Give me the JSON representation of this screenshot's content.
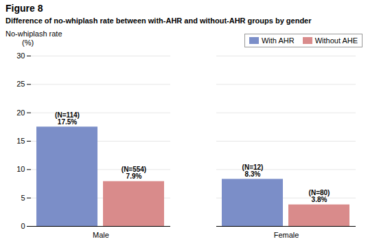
{
  "chart_data": {
    "type": "bar",
    "title": "Figure 8",
    "subtitle": "Difference of no-whiplash rate between with-AHR and without-AHR groups by gender",
    "ylabel": [
      "No-whiplash rate",
      "(%)"
    ],
    "categories": [
      "Male",
      "Female"
    ],
    "series": [
      {
        "name": "With AHR",
        "color": "#7B8EC8",
        "values": [
          17.5,
          8.3
        ],
        "value_labels": [
          "17.5%",
          "8.3%"
        ],
        "n_labels": [
          "(N=114)",
          "(N=12)"
        ]
      },
      {
        "name": "Without AHE",
        "color": "#D98B8B",
        "values": [
          7.9,
          3.8
        ],
        "value_labels": [
          "7.9%",
          "3.8%"
        ],
        "n_labels": [
          "(N=554)",
          "(N=80)"
        ]
      }
    ],
    "ylim": [
      0,
      30
    ],
    "yticks": [
      0,
      5,
      10,
      15,
      20,
      25,
      30
    ],
    "grid": true,
    "legend": "upper right",
    "data_labels": true
  }
}
